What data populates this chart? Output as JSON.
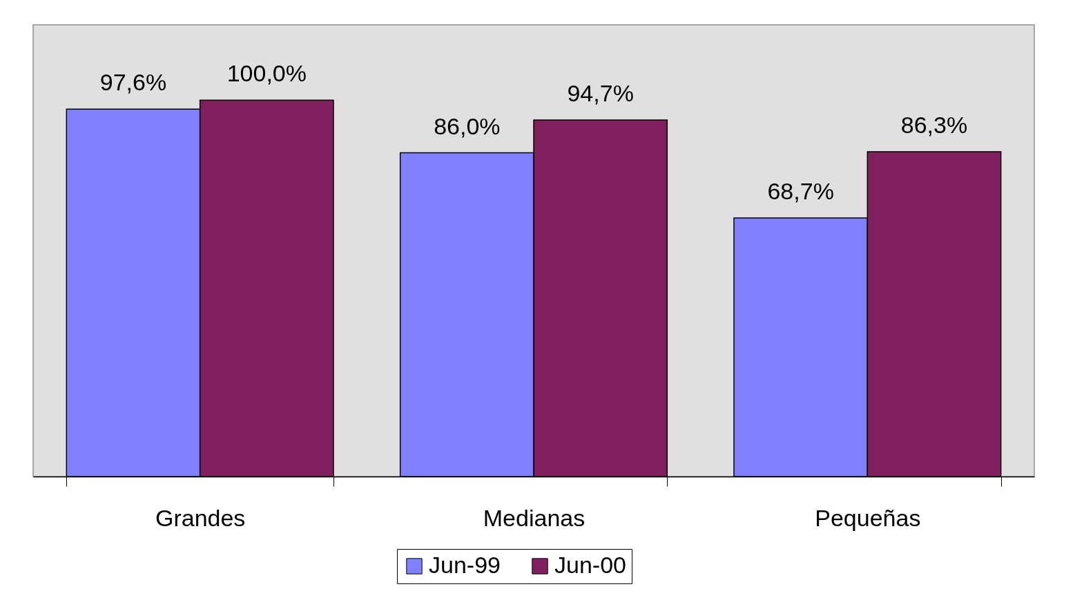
{
  "chart_data": {
    "type": "bar",
    "categories": [
      "Grandes",
      "Medianas",
      "Pequeñas"
    ],
    "series": [
      {
        "name": "Jun-99",
        "color": "#8080ff",
        "values": [
          97.6,
          86.0,
          68.7
        ],
        "value_labels": [
          "97,6%",
          "86,0%",
          "68,7%"
        ]
      },
      {
        "name": "Jun-00",
        "color": "#80205f",
        "values": [
          100.0,
          94.7,
          86.3
        ],
        "value_labels": [
          "100,0%",
          "94,7%",
          "86,3%"
        ]
      }
    ],
    "ylim": [
      0,
      120
    ],
    "tick_labels": "x",
    "legend": "bottom",
    "grid": false
  }
}
